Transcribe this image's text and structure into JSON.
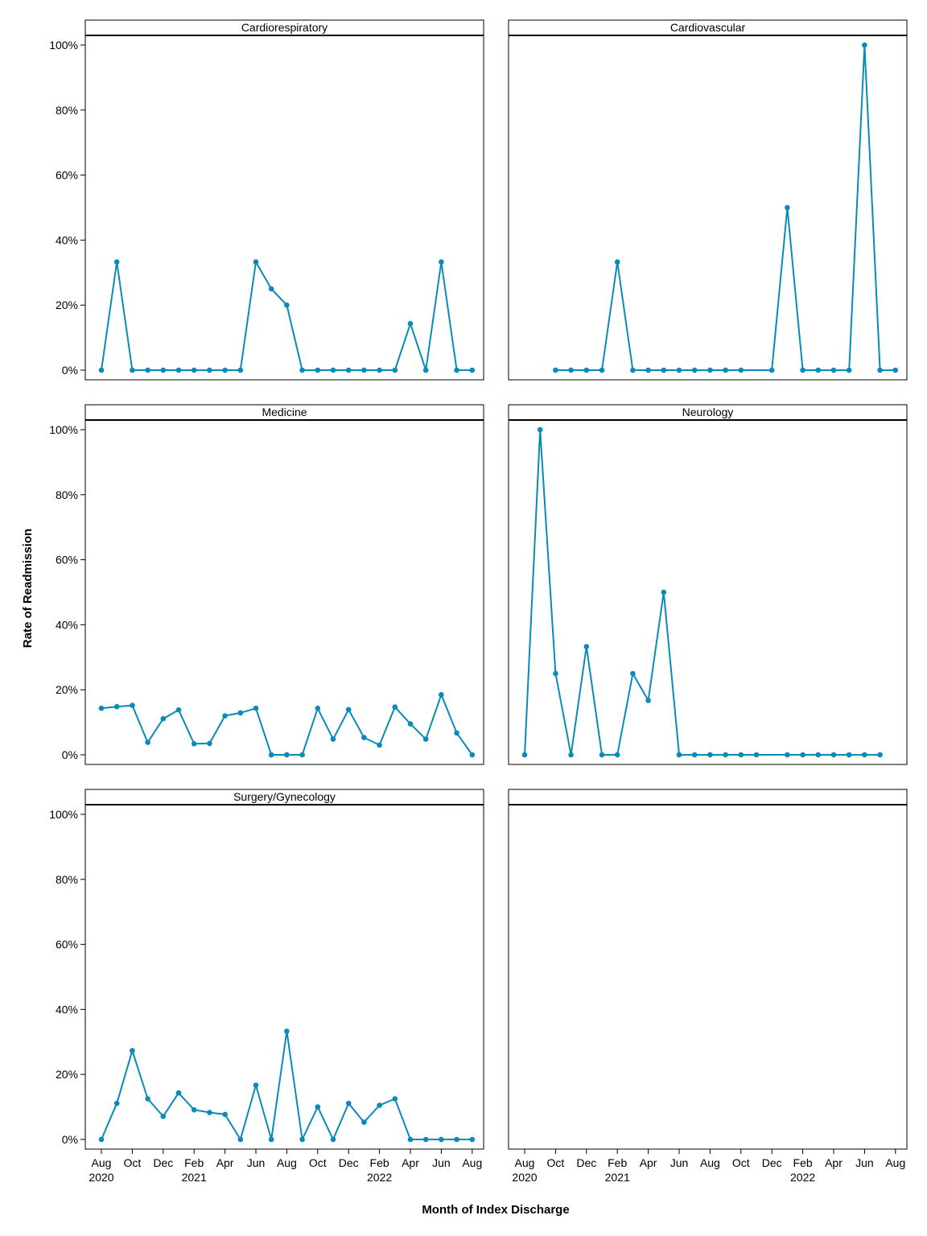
{
  "chart_data": {
    "type": "line",
    "xlabel": "Month of Index Discharge",
    "ylabel": "Rate of Readmission",
    "series_color": "#0a8ab8",
    "x_start": "2020-08",
    "ylim": [
      0,
      100
    ],
    "y_ticks": [
      "0%",
      "20%",
      "40%",
      "60%",
      "80%",
      "100%"
    ],
    "x_ticks": [
      {
        "month": "2020-08",
        "label": "Aug",
        "year": "2020"
      },
      {
        "month": "2020-10",
        "label": "Oct",
        "year": ""
      },
      {
        "month": "2020-12",
        "label": "Dec",
        "year": ""
      },
      {
        "month": "2021-02",
        "label": "Feb",
        "year": "2021"
      },
      {
        "month": "2021-04",
        "label": "Apr",
        "year": ""
      },
      {
        "month": "2021-06",
        "label": "Jun",
        "year": ""
      },
      {
        "month": "2021-08",
        "label": "Aug",
        "year": ""
      },
      {
        "month": "2021-10",
        "label": "Oct",
        "year": ""
      },
      {
        "month": "2021-12",
        "label": "Dec",
        "year": ""
      },
      {
        "month": "2022-02",
        "label": "Feb",
        "year": "2022"
      },
      {
        "month": "2022-04",
        "label": "Apr",
        "year": ""
      },
      {
        "month": "2022-06",
        "label": "Jun",
        "year": ""
      },
      {
        "month": "2022-08",
        "label": "Aug",
        "year": ""
      }
    ],
    "panels": [
      {
        "name": "Cardiorespiratory",
        "points": [
          [
            "2020-08",
            0
          ],
          [
            "2020-09",
            33.3
          ],
          [
            "2020-10",
            0
          ],
          [
            "2020-11",
            0
          ],
          [
            "2020-12",
            0
          ],
          [
            "2021-01",
            0
          ],
          [
            "2021-02",
            0
          ],
          [
            "2021-03",
            0
          ],
          [
            "2021-04",
            0
          ],
          [
            "2021-05",
            0
          ],
          [
            "2021-06",
            33.3
          ],
          [
            "2021-07",
            25
          ],
          [
            "2021-08",
            20
          ],
          [
            "2021-09",
            0
          ],
          [
            "2021-10",
            0
          ],
          [
            "2021-11",
            0
          ],
          [
            "2021-12",
            0
          ],
          [
            "2022-01",
            0
          ],
          [
            "2022-02",
            0
          ],
          [
            "2022-03",
            0
          ],
          [
            "2022-04",
            14.3
          ],
          [
            "2022-05",
            0
          ],
          [
            "2022-06",
            33.3
          ],
          [
            "2022-07",
            0
          ],
          [
            "2022-08",
            0
          ]
        ]
      },
      {
        "name": "Cardiovascular",
        "points": [
          [
            "2020-10",
            0
          ],
          [
            "2020-11",
            0
          ],
          [
            "2020-12",
            0
          ],
          [
            "2021-01",
            0
          ],
          [
            "2021-02",
            33.3
          ],
          [
            "2021-03",
            0
          ],
          [
            "2021-04",
            0
          ],
          [
            "2021-05",
            0
          ],
          [
            "2021-06",
            0
          ],
          [
            "2021-07",
            0
          ],
          [
            "2021-08",
            0
          ],
          [
            "2021-09",
            0
          ],
          [
            "2021-10",
            0
          ],
          [
            "2021-12",
            0
          ],
          [
            "2022-01",
            50
          ],
          [
            "2022-02",
            0
          ],
          [
            "2022-03",
            0
          ],
          [
            "2022-04",
            0
          ],
          [
            "2022-05",
            0
          ],
          [
            "2022-06",
            100
          ],
          [
            "2022-07",
            0
          ],
          [
            "2022-08",
            0
          ]
        ]
      },
      {
        "name": "Medicine",
        "points": [
          [
            "2020-08",
            14.3
          ],
          [
            "2020-09",
            14.8
          ],
          [
            "2020-10",
            15.2
          ],
          [
            "2020-11",
            3.8
          ],
          [
            "2020-12",
            11.1
          ],
          [
            "2021-01",
            13.8
          ],
          [
            "2021-02",
            3.4
          ],
          [
            "2021-03",
            3.5
          ],
          [
            "2021-04",
            12.0
          ],
          [
            "2021-05",
            12.9
          ],
          [
            "2021-06",
            14.3
          ],
          [
            "2021-07",
            0
          ],
          [
            "2021-08",
            0
          ],
          [
            "2021-09",
            0
          ],
          [
            "2021-10",
            14.3
          ],
          [
            "2021-11",
            4.8
          ],
          [
            "2021-12",
            13.9
          ],
          [
            "2022-01",
            5.3
          ],
          [
            "2022-02",
            3.0
          ],
          [
            "2022-03",
            14.7
          ],
          [
            "2022-04",
            9.5
          ],
          [
            "2022-05",
            4.8
          ],
          [
            "2022-06",
            18.5
          ],
          [
            "2022-07",
            6.7
          ],
          [
            "2022-08",
            0
          ]
        ]
      },
      {
        "name": "Neurology",
        "points": [
          [
            "2020-08",
            0
          ],
          [
            "2020-09",
            100
          ],
          [
            "2020-10",
            25
          ],
          [
            "2020-11",
            0
          ],
          [
            "2020-12",
            33.3
          ],
          [
            "2021-01",
            0
          ],
          [
            "2021-02",
            0
          ],
          [
            "2021-03",
            25
          ],
          [
            "2021-04",
            16.7
          ],
          [
            "2021-05",
            50
          ],
          [
            "2021-06",
            0
          ],
          [
            "2021-07",
            0
          ],
          [
            "2021-08",
            0
          ],
          [
            "2021-09",
            0
          ],
          [
            "2021-10",
            0
          ],
          [
            "2021-11",
            0
          ],
          [
            "2022-01",
            0
          ],
          [
            "2022-02",
            0
          ],
          [
            "2022-03",
            0
          ],
          [
            "2022-04",
            0
          ],
          [
            "2022-05",
            0
          ],
          [
            "2022-06",
            0
          ],
          [
            "2022-07",
            0
          ]
        ]
      },
      {
        "name": "Surgery/Gynecology",
        "points": [
          [
            "2020-08",
            0
          ],
          [
            "2020-09",
            11.1
          ],
          [
            "2020-10",
            27.3
          ],
          [
            "2020-11",
            12.5
          ],
          [
            "2020-12",
            7.1
          ],
          [
            "2021-01",
            14.3
          ],
          [
            "2021-02",
            9.1
          ],
          [
            "2021-03",
            8.3
          ],
          [
            "2021-04",
            7.7
          ],
          [
            "2021-05",
            0
          ],
          [
            "2021-06",
            16.7
          ],
          [
            "2021-07",
            0
          ],
          [
            "2021-08",
            33.3
          ],
          [
            "2021-09",
            0
          ],
          [
            "2021-10",
            10.0
          ],
          [
            "2021-11",
            0
          ],
          [
            "2021-12",
            11.1
          ],
          [
            "2022-01",
            5.3
          ],
          [
            "2022-02",
            10.5
          ],
          [
            "2022-03",
            12.5
          ],
          [
            "2022-04",
            0
          ],
          [
            "2022-05",
            0
          ],
          [
            "2022-06",
            0
          ],
          [
            "2022-07",
            0
          ],
          [
            "2022-08",
            0
          ]
        ]
      },
      {
        "name": "",
        "points": []
      }
    ]
  }
}
